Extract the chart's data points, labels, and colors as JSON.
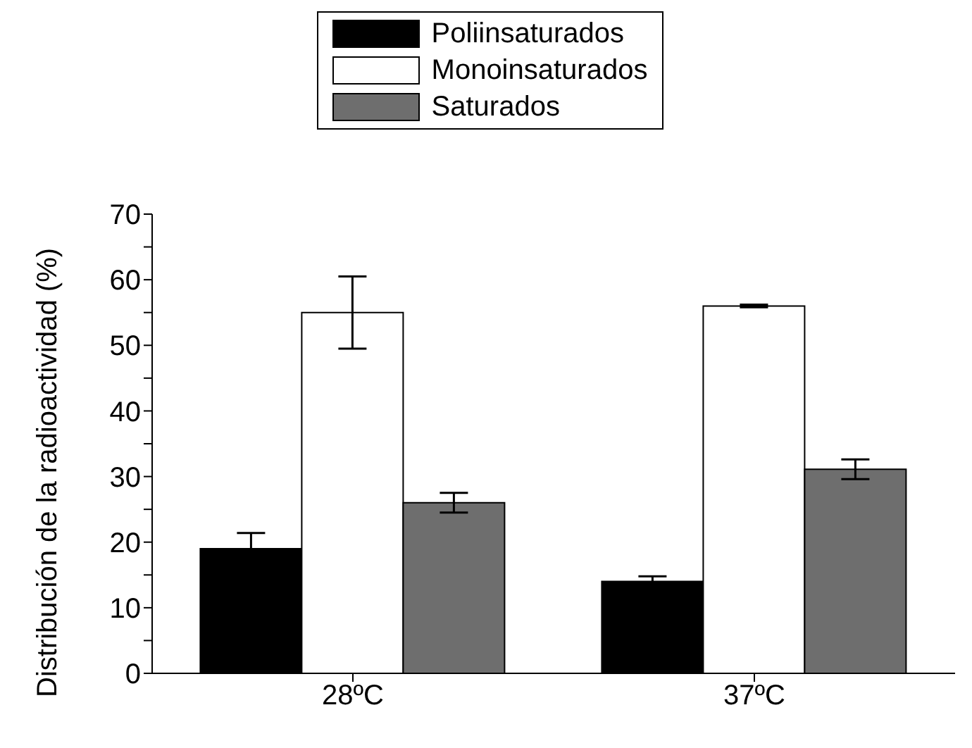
{
  "chart_data": {
    "type": "bar",
    "ylabel": "Distribución de la radioactividad (%)",
    "categories": [
      "28ºC",
      "37ºC"
    ],
    "series": [
      {
        "name": "Poliinsaturados",
        "color": "#000000",
        "values": [
          19,
          14
        ],
        "errors": [
          2.4,
          0.8
        ]
      },
      {
        "name": "Monoinsaturados",
        "color": "#ffffff",
        "values": [
          55,
          56
        ],
        "errors": [
          5.5,
          0.2
        ]
      },
      {
        "name": "Saturados",
        "color": "#6e6e6e",
        "values": [
          26,
          31.1
        ],
        "errors": [
          1.5,
          1.5
        ]
      }
    ],
    "ylim": [
      0,
      70
    ],
    "yticks": [
      0,
      {
        "value": 5,
        "label": null
      },
      10,
      {
        "value": 15,
        "label": null
      },
      20,
      {
        "value": 25,
        "label": null
      },
      30,
      {
        "value": 35,
        "label": null
      },
      40,
      {
        "value": 45,
        "label": null
      },
      50,
      {
        "value": 55,
        "label": null
      },
      60,
      {
        "value": 65,
        "label": null
      },
      70
    ],
    "legend": "top",
    "grid": false
  }
}
